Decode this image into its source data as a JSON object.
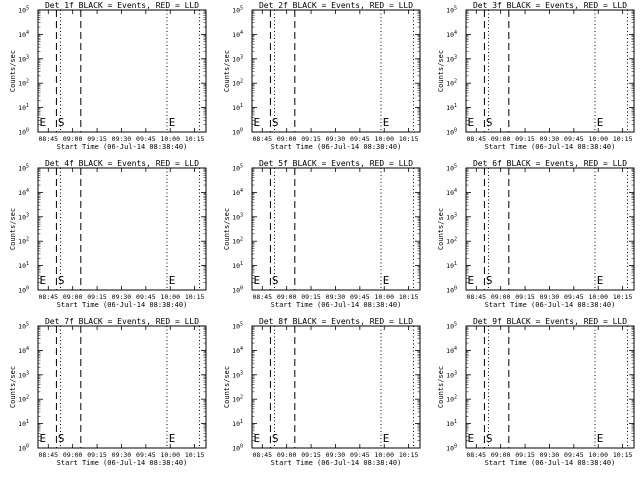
{
  "chart_data": [
    {
      "type": "line",
      "title": "Det 1f BLACK = Events, RED = LLD",
      "xlabel": "Start Time (06-Jul-14 08:38:40)",
      "ylabel": "Counts/sec",
      "x_ticks": [
        "08:45",
        "09:00",
        "09:15",
        "09:30",
        "09:45",
        "10:00",
        "10:15"
      ],
      "x_tick_minutes": [
        405,
        420,
        435,
        450,
        465,
        480,
        495
      ],
      "xlim_minutes": [
        398.67,
        502
      ],
      "y_ticks_exponent": [
        "0",
        "1",
        "2",
        "3",
        "4",
        "5"
      ],
      "ylim_log10": [
        0,
        5
      ],
      "series": [],
      "dashed_markers_minutes": [
        410,
        425
      ],
      "dotted_markers_minutes": [
        412.5,
        478,
        498
      ],
      "annotations": [
        {
          "text": "E",
          "x_minute": 399
        },
        {
          "text": "S",
          "x_minute": 410.3
        },
        {
          "text": "E",
          "x_minute": 478.5
        }
      ]
    },
    {
      "type": "line",
      "title": "Det 2f BLACK = Events, RED = LLD",
      "xlabel": "Start Time (06-Jul-14 08:38:40)",
      "ylabel": "Counts/sec",
      "x_ticks": [
        "08:45",
        "09:00",
        "09:15",
        "09:30",
        "09:45",
        "10:00",
        "10:15"
      ],
      "x_tick_minutes": [
        405,
        420,
        435,
        450,
        465,
        480,
        495
      ],
      "xlim_minutes": [
        398.67,
        502
      ],
      "y_ticks_exponent": [
        "0",
        "1",
        "2",
        "3",
        "4",
        "5"
      ],
      "ylim_log10": [
        0,
        5
      ],
      "series": [],
      "dashed_markers_minutes": [
        410,
        425
      ],
      "dotted_markers_minutes": [
        412.5,
        478,
        498
      ],
      "annotations": [
        {
          "text": "E",
          "x_minute": 399
        },
        {
          "text": "S",
          "x_minute": 410.3
        },
        {
          "text": "E",
          "x_minute": 478.5
        }
      ]
    },
    {
      "type": "line",
      "title": "Det 3f BLACK = Events, RED = LLD",
      "xlabel": "Start Time (06-Jul-14 08:38:40)",
      "ylabel": "Counts/sec",
      "x_ticks": [
        "08:45",
        "09:00",
        "09:15",
        "09:30",
        "09:45",
        "10:00",
        "10:15"
      ],
      "x_tick_minutes": [
        405,
        420,
        435,
        450,
        465,
        480,
        495
      ],
      "xlim_minutes": [
        398.67,
        502
      ],
      "y_ticks_exponent": [
        "0",
        "1",
        "2",
        "3",
        "4",
        "5"
      ],
      "ylim_log10": [
        0,
        5
      ],
      "series": [],
      "dashed_markers_minutes": [
        410,
        425
      ],
      "dotted_markers_minutes": [
        412.5,
        478,
        498
      ],
      "annotations": [
        {
          "text": "E",
          "x_minute": 399
        },
        {
          "text": "S",
          "x_minute": 410.3
        },
        {
          "text": "E",
          "x_minute": 478.5
        }
      ]
    },
    {
      "type": "line",
      "title": "Det 4f BLACK = Events, RED = LLD",
      "xlabel": "Start Time (06-Jul-14 08:38:40)",
      "ylabel": "Counts/sec",
      "x_ticks": [
        "08:45",
        "09:00",
        "09:15",
        "09:30",
        "09:45",
        "10:00",
        "10:15"
      ],
      "x_tick_minutes": [
        405,
        420,
        435,
        450,
        465,
        480,
        495
      ],
      "xlim_minutes": [
        398.67,
        502
      ],
      "y_ticks_exponent": [
        "0",
        "1",
        "2",
        "3",
        "4",
        "5"
      ],
      "ylim_log10": [
        0,
        5
      ],
      "series": [],
      "dashed_markers_minutes": [
        410,
        425
      ],
      "dotted_markers_minutes": [
        412.5,
        478,
        498
      ],
      "annotations": [
        {
          "text": "E",
          "x_minute": 399
        },
        {
          "text": "S",
          "x_minute": 410.3
        },
        {
          "text": "E",
          "x_minute": 478.5
        }
      ]
    },
    {
      "type": "line",
      "title": "Det 5f BLACK = Events, RED = LLD",
      "xlabel": "Start Time (06-Jul-14 08:38:40)",
      "ylabel": "Counts/sec",
      "x_ticks": [
        "08:45",
        "09:00",
        "09:15",
        "09:30",
        "09:45",
        "10:00",
        "10:15"
      ],
      "x_tick_minutes": [
        405,
        420,
        435,
        450,
        465,
        480,
        495
      ],
      "xlim_minutes": [
        398.67,
        502
      ],
      "y_ticks_exponent": [
        "0",
        "1",
        "2",
        "3",
        "4",
        "5"
      ],
      "ylim_log10": [
        0,
        5
      ],
      "series": [],
      "dashed_markers_minutes": [
        410,
        425
      ],
      "dotted_markers_minutes": [
        412.5,
        478,
        498
      ],
      "annotations": [
        {
          "text": "E",
          "x_minute": 399
        },
        {
          "text": "S",
          "x_minute": 410.3
        },
        {
          "text": "E",
          "x_minute": 478.5
        }
      ]
    },
    {
      "type": "line",
      "title": "Det 6f BLACK = Events, RED = LLD",
      "xlabel": "Start Time (06-Jul-14 08:38:40)",
      "ylabel": "Counts/sec",
      "x_ticks": [
        "08:45",
        "09:00",
        "09:15",
        "09:30",
        "09:45",
        "10:00",
        "10:15"
      ],
      "x_tick_minutes": [
        405,
        420,
        435,
        450,
        465,
        480,
        495
      ],
      "xlim_minutes": [
        398.67,
        502
      ],
      "y_ticks_exponent": [
        "0",
        "1",
        "2",
        "3",
        "4",
        "5"
      ],
      "ylim_log10": [
        0,
        5
      ],
      "series": [],
      "dashed_markers_minutes": [
        410,
        425
      ],
      "dotted_markers_minutes": [
        412.5,
        478,
        498
      ],
      "annotations": [
        {
          "text": "E",
          "x_minute": 399
        },
        {
          "text": "S",
          "x_minute": 410.3
        },
        {
          "text": "E",
          "x_minute": 478.5
        }
      ]
    },
    {
      "type": "line",
      "title": "Det 7f BLACK = Events, RED = LLD",
      "xlabel": "Start Time (06-Jul-14 08:38:40)",
      "ylabel": "Counts/sec",
      "x_ticks": [
        "08:45",
        "09:00",
        "09:15",
        "09:30",
        "09:45",
        "10:00",
        "10:15"
      ],
      "x_tick_minutes": [
        405,
        420,
        435,
        450,
        465,
        480,
        495
      ],
      "xlim_minutes": [
        398.67,
        502
      ],
      "y_ticks_exponent": [
        "0",
        "1",
        "2",
        "3",
        "4",
        "5"
      ],
      "ylim_log10": [
        0,
        5
      ],
      "series": [],
      "dashed_markers_minutes": [
        410,
        425
      ],
      "dotted_markers_minutes": [
        412.5,
        478,
        498
      ],
      "annotations": [
        {
          "text": "E",
          "x_minute": 399
        },
        {
          "text": "S",
          "x_minute": 410.3
        },
        {
          "text": "E",
          "x_minute": 478.5
        }
      ]
    },
    {
      "type": "line",
      "title": "Det 8f BLACK = Events, RED = LLD",
      "xlabel": "Start Time (06-Jul-14 08:38:40)",
      "ylabel": "Counts/sec",
      "x_ticks": [
        "08:45",
        "09:00",
        "09:15",
        "09:30",
        "09:45",
        "10:00",
        "10:15"
      ],
      "x_tick_minutes": [
        405,
        420,
        435,
        450,
        465,
        480,
        495
      ],
      "xlim_minutes": [
        398.67,
        502
      ],
      "y_ticks_exponent": [
        "0",
        "1",
        "2",
        "3",
        "4",
        "5"
      ],
      "ylim_log10": [
        0,
        5
      ],
      "series": [],
      "dashed_markers_minutes": [
        410,
        425
      ],
      "dotted_markers_minutes": [
        412.5,
        478,
        498
      ],
      "annotations": [
        {
          "text": "E",
          "x_minute": 399
        },
        {
          "text": "S",
          "x_minute": 410.3
        },
        {
          "text": "E",
          "x_minute": 478.5
        }
      ]
    },
    {
      "type": "line",
      "title": "Det 9f BLACK = Events, RED = LLD",
      "xlabel": "Start Time (06-Jul-14 08:38:40)",
      "ylabel": "Counts/sec",
      "x_ticks": [
        "08:45",
        "09:00",
        "09:15",
        "09:30",
        "09:45",
        "10:00",
        "10:15"
      ],
      "x_tick_minutes": [
        405,
        420,
        435,
        450,
        465,
        480,
        495
      ],
      "xlim_minutes": [
        398.67,
        502
      ],
      "y_ticks_exponent": [
        "0",
        "1",
        "2",
        "3",
        "4",
        "5"
      ],
      "ylim_log10": [
        0,
        5
      ],
      "series": [],
      "dashed_markers_minutes": [
        410,
        425
      ],
      "dotted_markers_minutes": [
        412.5,
        478,
        498
      ],
      "annotations": [
        {
          "text": "E",
          "x_minute": 399
        },
        {
          "text": "S",
          "x_minute": 410.3
        },
        {
          "text": "E",
          "x_minute": 478.5
        }
      ]
    }
  ]
}
